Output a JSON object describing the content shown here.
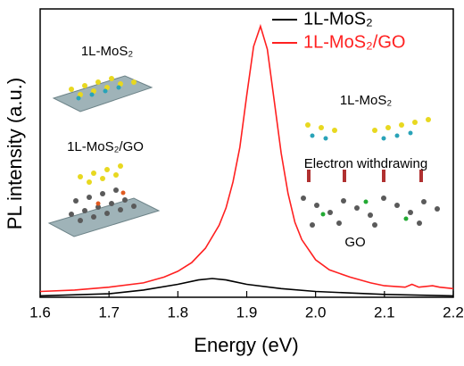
{
  "chart_data": {
    "type": "line",
    "x_label": "Energy (eV)",
    "y_label": "PL intensity (a.u.)",
    "xlim": [
      1.6,
      2.2
    ],
    "ylim": [
      0,
      1
    ],
    "xticks": [
      1.6,
      1.7,
      1.8,
      1.9,
      {
        "value": 2,
        "label": "2.0"
      },
      2.1,
      2.2
    ],
    "legend_position": "upper right",
    "annotations": [
      "1L-MoS₂",
      "1L-MoS₂/GO",
      "1L-MoS₂",
      "Electron withdrawing",
      "GO"
    ],
    "series": [
      {
        "name": "1L-MoS₂",
        "color": "#000000",
        "x": [
          1.6,
          1.7,
          1.75,
          1.8,
          1.83,
          1.85,
          1.87,
          1.9,
          1.95,
          2.0,
          2.05,
          2.1,
          2.2
        ],
        "values": [
          0.005,
          0.012,
          0.025,
          0.045,
          0.06,
          0.065,
          0.06,
          0.045,
          0.03,
          0.02,
          0.015,
          0.01,
          0.005
        ]
      },
      {
        "name": "1L-MoS₂/GO",
        "color": "#ff2020",
        "x": [
          1.6,
          1.65,
          1.7,
          1.75,
          1.78,
          1.8,
          1.82,
          1.84,
          1.86,
          1.87,
          1.88,
          1.89,
          1.9,
          1.91,
          1.92,
          1.93,
          1.94,
          1.95,
          1.96,
          1.97,
          1.98,
          2.0,
          2.02,
          2.05,
          2.08,
          2.1,
          2.13,
          2.14,
          2.15,
          2.17,
          2.18,
          2.2
        ],
        "values": [
          0.02,
          0.025,
          0.035,
          0.05,
          0.07,
          0.09,
          0.12,
          0.17,
          0.25,
          0.31,
          0.4,
          0.52,
          0.7,
          0.87,
          0.94,
          0.86,
          0.68,
          0.5,
          0.36,
          0.26,
          0.2,
          0.13,
          0.095,
          0.07,
          0.05,
          0.04,
          0.035,
          0.045,
          0.035,
          0.04,
          0.035,
          0.03
        ]
      }
    ]
  }
}
